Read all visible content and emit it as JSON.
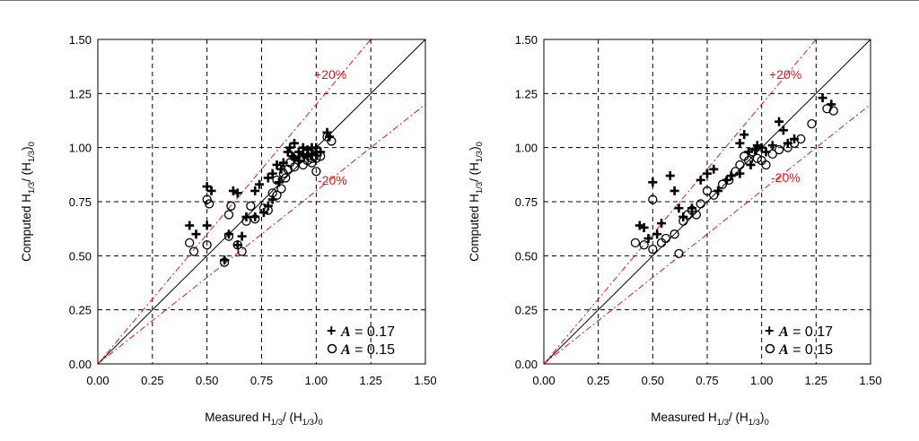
{
  "chart_data": [
    {
      "type": "scatter",
      "xlabel": "Measured H1/3/ (H1/3)0",
      "ylabel": "Computed H1/3/ (H1/3)0",
      "xlim": [
        0,
        1.5
      ],
      "ylim": [
        0,
        1.5
      ],
      "xticks": [
        "0.00",
        "0.25",
        "0.50",
        "0.75",
        "1.00",
        "1.25",
        "1.50"
      ],
      "yticks": [
        "0.00",
        "0.25",
        "0.50",
        "0.75",
        "1.00",
        "1.25",
        "1.50"
      ],
      "grid": true,
      "legend_position": "bottom-right",
      "reference_lines": [
        {
          "label": "",
          "slope": 1.0,
          "color": "#000000",
          "style": "solid"
        },
        {
          "label": "+20%",
          "slope": 1.2,
          "color": "#e8141b",
          "style": "dash-dot"
        },
        {
          "label": "-20%",
          "slope": 0.8,
          "color": "#e8141b",
          "style": "dash-dot"
        }
      ],
      "series": [
        {
          "name": "A = 0.17",
          "marker": "plus",
          "points": [
            [
              0.42,
              0.64
            ],
            [
              0.45,
              0.6
            ],
            [
              0.5,
              0.82
            ],
            [
              0.52,
              0.8
            ],
            [
              0.5,
              0.64
            ],
            [
              0.58,
              0.48
            ],
            [
              0.62,
              0.8
            ],
            [
              0.64,
              0.79
            ],
            [
              0.6,
              0.6
            ],
            [
              0.64,
              0.55
            ],
            [
              0.66,
              0.59
            ],
            [
              0.68,
              0.68
            ],
            [
              0.72,
              0.8
            ],
            [
              0.74,
              0.83
            ],
            [
              0.72,
              0.68
            ],
            [
              0.76,
              0.7
            ],
            [
              0.78,
              0.73
            ],
            [
              0.78,
              0.86
            ],
            [
              0.8,
              0.76
            ],
            [
              0.8,
              0.88
            ],
            [
              0.82,
              0.92
            ],
            [
              0.83,
              0.84
            ],
            [
              0.84,
              0.9
            ],
            [
              0.85,
              0.93
            ],
            [
              0.87,
              0.98
            ],
            [
              0.88,
              1.0
            ],
            [
              0.89,
              0.96
            ],
            [
              0.9,
              0.95
            ],
            [
              0.9,
              1.02
            ],
            [
              0.92,
              0.94
            ],
            [
              0.92,
              0.98
            ],
            [
              0.94,
              0.97
            ],
            [
              0.94,
              1.0
            ],
            [
              0.96,
              0.96
            ],
            [
              0.96,
              0.99
            ],
            [
              0.98,
              0.97
            ],
            [
              0.98,
              1.0
            ],
            [
              1.0,
              0.98
            ],
            [
              1.0,
              1.0
            ],
            [
              1.02,
              0.98
            ],
            [
              1.05,
              1.07
            ],
            [
              1.06,
              1.05
            ]
          ]
        },
        {
          "name": "A = 0.15",
          "marker": "circle",
          "points": [
            [
              0.42,
              0.56
            ],
            [
              0.44,
              0.52
            ],
            [
              0.5,
              0.76
            ],
            [
              0.51,
              0.74
            ],
            [
              0.5,
              0.55
            ],
            [
              0.58,
              0.47
            ],
            [
              0.6,
              0.69
            ],
            [
              0.61,
              0.73
            ],
            [
              0.6,
              0.59
            ],
            [
              0.64,
              0.55
            ],
            [
              0.66,
              0.52
            ],
            [
              0.68,
              0.66
            ],
            [
              0.7,
              0.73
            ],
            [
              0.72,
              0.67
            ],
            [
              0.76,
              0.72
            ],
            [
              0.78,
              0.71
            ],
            [
              0.8,
              0.79
            ],
            [
              0.82,
              0.85
            ],
            [
              0.82,
              0.78
            ],
            [
              0.84,
              0.81
            ],
            [
              0.85,
              0.88
            ],
            [
              0.86,
              0.86
            ],
            [
              0.87,
              0.9
            ],
            [
              0.88,
              0.93
            ],
            [
              0.9,
              0.91
            ],
            [
              0.91,
              0.96
            ],
            [
              0.93,
              0.95
            ],
            [
              0.94,
              0.92
            ],
            [
              0.95,
              0.97
            ],
            [
              0.96,
              0.94
            ],
            [
              0.98,
              0.93
            ],
            [
              0.98,
              0.95
            ],
            [
              0.99,
              0.96
            ],
            [
              1.0,
              0.95
            ],
            [
              1.0,
              0.89
            ],
            [
              1.02,
              0.96
            ],
            [
              1.05,
              1.05
            ],
            [
              1.07,
              1.03
            ]
          ]
        }
      ]
    },
    {
      "type": "scatter",
      "xlabel": "Measured H1/3/ (H1/3)0",
      "ylabel": "Computed H1/3/ (H1/3)0",
      "xlim": [
        0,
        1.5
      ],
      "ylim": [
        0,
        1.5
      ],
      "xticks": [
        "0.00",
        "0.25",
        "0.50",
        "0.75",
        "1.00",
        "1.25",
        "1.50"
      ],
      "yticks": [
        "0.00",
        "0.25",
        "0.50",
        "0.75",
        "1.00",
        "1.25",
        "1.50"
      ],
      "grid": true,
      "legend_position": "bottom-right",
      "reference_lines": [
        {
          "label": "",
          "slope": 1.0,
          "color": "#000000",
          "style": "solid"
        },
        {
          "label": "+20%",
          "slope": 1.2,
          "color": "#e8141b",
          "style": "dash-dot"
        },
        {
          "label": "-20%",
          "slope": 0.8,
          "color": "#e8141b",
          "style": "dash-dot"
        }
      ],
      "series": [
        {
          "name": "A = 0.17",
          "marker": "plus",
          "points": [
            [
              0.44,
              0.64
            ],
            [
              0.46,
              0.63
            ],
            [
              0.5,
              0.84
            ],
            [
              0.48,
              0.58
            ],
            [
              0.52,
              0.6
            ],
            [
              0.54,
              0.65
            ],
            [
              0.58,
              0.87
            ],
            [
              0.6,
              0.8
            ],
            [
              0.62,
              0.72
            ],
            [
              0.64,
              0.68
            ],
            [
              0.68,
              0.72
            ],
            [
              0.72,
              0.85
            ],
            [
              0.75,
              0.88
            ],
            [
              0.78,
              0.9
            ],
            [
              0.8,
              0.8
            ],
            [
              0.84,
              0.85
            ],
            [
              0.86,
              0.87
            ],
            [
              0.9,
              0.88
            ],
            [
              0.9,
              1.02
            ],
            [
              0.92,
              1.06
            ],
            [
              0.94,
              0.98
            ],
            [
              0.95,
              0.92
            ],
            [
              0.97,
              0.99
            ],
            [
              0.98,
              1.01
            ],
            [
              1.0,
              1.0
            ],
            [
              1.02,
              0.98
            ],
            [
              1.05,
              1.01
            ],
            [
              1.08,
              1.12
            ],
            [
              1.1,
              1.08
            ],
            [
              1.12,
              1.02
            ],
            [
              1.15,
              1.04
            ],
            [
              1.28,
              1.23
            ],
            [
              1.32,
              1.2
            ]
          ]
        },
        {
          "name": "A = 0.15",
          "marker": "circle",
          "points": [
            [
              0.42,
              0.56
            ],
            [
              0.46,
              0.55
            ],
            [
              0.5,
              0.76
            ],
            [
              0.5,
              0.53
            ],
            [
              0.54,
              0.56
            ],
            [
              0.56,
              0.58
            ],
            [
              0.6,
              0.6
            ],
            [
              0.62,
              0.51
            ],
            [
              0.64,
              0.66
            ],
            [
              0.66,
              0.69
            ],
            [
              0.68,
              0.71
            ],
            [
              0.7,
              0.69
            ],
            [
              0.72,
              0.74
            ],
            [
              0.75,
              0.8
            ],
            [
              0.78,
              0.78
            ],
            [
              0.82,
              0.83
            ],
            [
              0.85,
              0.85
            ],
            [
              0.88,
              0.89
            ],
            [
              0.9,
              0.92
            ],
            [
              0.92,
              0.96
            ],
            [
              0.94,
              0.94
            ],
            [
              0.96,
              0.98
            ],
            [
              0.98,
              0.95
            ],
            [
              1.0,
              0.94
            ],
            [
              1.02,
              0.92
            ],
            [
              1.05,
              0.97
            ],
            [
              1.08,
              0.99
            ],
            [
              1.12,
              1.0
            ],
            [
              1.15,
              1.02
            ],
            [
              1.18,
              1.04
            ],
            [
              1.23,
              1.11
            ],
            [
              1.3,
              1.18
            ],
            [
              1.33,
              1.17
            ]
          ]
        }
      ]
    }
  ],
  "panels": [
    {
      "xlabel_main": "Measured H",
      "xlabel_sub1": "1/3",
      "xlabel_mid": "/ (H",
      "xlabel_sub2": "1/3",
      "xlabel_end": ")",
      "xlabel_sub3": "0",
      "ylabel_main": "Computed H",
      "ylabel_sub1": "1/3",
      "ylabel_mid": "/ (H",
      "ylabel_sub2": "1/3",
      "ylabel_end": ")",
      "ylabel_sub3": "0",
      "plus_label": "+20%",
      "minus_label": "-20%",
      "legend": [
        {
          "symbol": "A",
          "text": " = 0.17"
        },
        {
          "symbol": "A",
          "text": " = 0.15"
        }
      ]
    },
    {
      "xlabel_main": "Measured H",
      "xlabel_sub1": "1/3",
      "xlabel_mid": "/ (H",
      "xlabel_sub2": "1/3",
      "xlabel_end": ")",
      "xlabel_sub3": "0",
      "ylabel_main": "Computed H",
      "ylabel_sub1": "1/3",
      "ylabel_mid": "/ (H",
      "ylabel_sub2": "1/3",
      "ylabel_end": ")",
      "ylabel_sub3": "0",
      "plus_label": "+20%",
      "minus_label": "-20%",
      "legend": [
        {
          "symbol": "A",
          "text": " = 0.17"
        },
        {
          "symbol": "A",
          "text": " = 0.15"
        }
      ]
    }
  ],
  "colors": {
    "grid": "#000000",
    "reference_band": "#e8141b",
    "identity_line": "#000000",
    "marker": "#000000"
  }
}
